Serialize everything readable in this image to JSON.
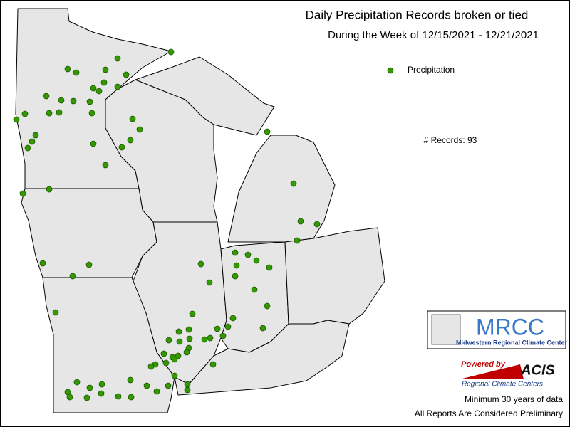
{
  "title": "Daily Precipitation Records broken or tied",
  "subtitle": "During the Week of 12/15/2021 - 12/21/2021",
  "legend": {
    "label": "Precipitation",
    "color": "#339900"
  },
  "record_count": "# Records: 93",
  "logo": {
    "name": "MRCC",
    "full_name": "Midwestern Regional Climate Center"
  },
  "powered": {
    "label": "Powered by",
    "name": "ACIS",
    "full_name": "Regional Climate Centers"
  },
  "notes": [
    "Minimum 30 years of data",
    "All Reports Are Considered Preliminary"
  ]
}
